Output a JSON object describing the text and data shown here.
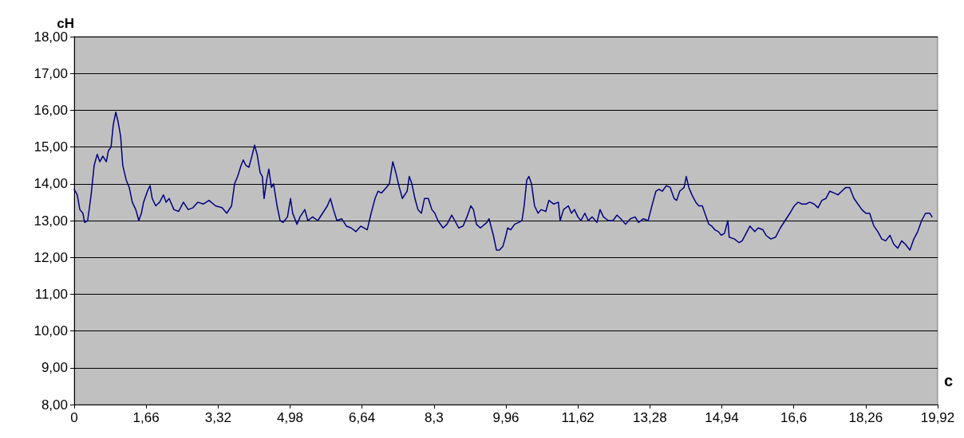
{
  "chart_data": {
    "type": "line",
    "xlabel": "с",
    "ylabel": "сН",
    "marker": "none",
    "line_style": "solid",
    "grid": "y",
    "xlim": [
      0,
      19.92
    ],
    "xticks": [
      0,
      {
        "value": 1.66,
        "label": "1,66"
      },
      {
        "value": 3.32,
        "label": "3,32"
      },
      {
        "value": 4.98,
        "label": "4,98"
      },
      {
        "value": 6.64,
        "label": "6,64"
      },
      {
        "value": 8.3,
        "label": "8,3"
      },
      {
        "value": 9.96,
        "label": "9,96"
      },
      {
        "value": 11.62,
        "label": "11,62"
      },
      {
        "value": 13.28,
        "label": "13,28"
      },
      {
        "value": 14.94,
        "label": "14,94"
      },
      {
        "value": 16.6,
        "label": "16,6"
      },
      {
        "value": 18.26,
        "label": "18,26"
      },
      {
        "value": 19.92,
        "label": "19,92"
      }
    ],
    "ylim": [
      8,
      18
    ],
    "yticks": [
      {
        "value": 8,
        "label": "8,00"
      },
      {
        "value": 9,
        "label": "9,00"
      },
      {
        "value": 10,
        "label": "10,00"
      },
      {
        "value": 11,
        "label": "11,00"
      },
      {
        "value": 12,
        "label": "12,00"
      },
      {
        "value": 13,
        "label": "13,00"
      },
      {
        "value": 14,
        "label": "14,00"
      },
      {
        "value": 15,
        "label": "15,00"
      },
      {
        "value": 16,
        "label": "16,00"
      },
      {
        "value": 17,
        "label": "17,00"
      },
      {
        "value": 18,
        "label": "18,00"
      }
    ],
    "series": [
      {
        "color": "#000080",
        "x": [
          0,
          0.07,
          0.13,
          0.2,
          0.24,
          0.31,
          0.39,
          0.46,
          0.53,
          0.59,
          0.66,
          0.74,
          0.79,
          0.85,
          0.9,
          0.96,
          1.01,
          1.07,
          1.12,
          1.2,
          1.27,
          1.34,
          1.42,
          1.49,
          1.55,
          1.6,
          1.69,
          1.75,
          1.8,
          1.88,
          1.97,
          2.06,
          2.12,
          2.19,
          2.3,
          2.41,
          2.52,
          2.63,
          2.74,
          2.85,
          2.98,
          3.11,
          3.26,
          3.41,
          3.52,
          3.63,
          3.7,
          3.77,
          3.85,
          3.9,
          3.96,
          4.03,
          4.11,
          4.16,
          4.22,
          4.29,
          4.34,
          4.38,
          4.44,
          4.49,
          4.55,
          4.6,
          4.68,
          4.75,
          4.82,
          4.92,
          4.99,
          5.04,
          5.14,
          5.21,
          5.32,
          5.39,
          5.5,
          5.62,
          5.73,
          5.84,
          5.91,
          5.98,
          6.06,
          6.17,
          6.28,
          6.39,
          6.5,
          6.61,
          6.76,
          6.85,
          6.94,
          7.01,
          7.09,
          7.2,
          7.27,
          7.35,
          7.42,
          7.49,
          7.57,
          7.68,
          7.73,
          7.79,
          7.86,
          7.93,
          8.01,
          8.08,
          8.17,
          8.25,
          8.32,
          8.39,
          8.51,
          8.6,
          8.71,
          8.78,
          8.87,
          8.97,
          9.06,
          9.15,
          9.21,
          9.28,
          9.37,
          9.52,
          9.57,
          9.67,
          9.74,
          9.81,
          9.89,
          9.96,
          10.0,
          10.07,
          10.16,
          10.25,
          10.33,
          10.38,
          10.44,
          10.49,
          10.55,
          10.62,
          10.7,
          10.77,
          10.88,
          10.95,
          11.06,
          11.17,
          11.21,
          11.29,
          11.4,
          11.47,
          11.54,
          11.62,
          11.69,
          11.78,
          11.86,
          11.95,
          12.06,
          12.13,
          12.21,
          12.32,
          12.43,
          12.52,
          12.61,
          12.72,
          12.83,
          12.94,
          13.02,
          13.13,
          13.24,
          13.35,
          13.42,
          13.49,
          13.57,
          13.66,
          13.75,
          13.84,
          13.9,
          13.97,
          14.07,
          14.12,
          14.18,
          14.25,
          14.34,
          14.41,
          14.49,
          14.58,
          14.64,
          14.71,
          14.78,
          14.86,
          14.93,
          15.0,
          15.08,
          15.11,
          15.23,
          15.34,
          15.41,
          15.5,
          15.59,
          15.7,
          15.78,
          15.89,
          15.96,
          16.07,
          16.18,
          16.29,
          16.4,
          16.51,
          16.61,
          16.7,
          16.79,
          16.88,
          16.97,
          17.07,
          17.16,
          17.25,
          17.34,
          17.43,
          17.53,
          17.62,
          17.71,
          17.8,
          17.89,
          17.99,
          18.08,
          18.17,
          18.26,
          18.35,
          18.45,
          18.54,
          18.63,
          18.72,
          18.82,
          18.91,
          19.0,
          19.09,
          19.18,
          19.28,
          19.37,
          19.46,
          19.55,
          19.64,
          19.74,
          19.79
        ],
        "values": [
          13.85,
          13.7,
          13.3,
          13.2,
          12.95,
          13.0,
          13.7,
          14.5,
          14.8,
          14.6,
          14.75,
          14.6,
          14.9,
          15.0,
          15.6,
          15.95,
          15.7,
          15.3,
          14.5,
          14.1,
          13.9,
          13.5,
          13.3,
          13.0,
          13.2,
          13.5,
          13.8,
          13.95,
          13.6,
          13.4,
          13.5,
          13.7,
          13.5,
          13.6,
          13.3,
          13.25,
          13.5,
          13.3,
          13.35,
          13.5,
          13.45,
          13.55,
          13.4,
          13.35,
          13.2,
          13.4,
          14.0,
          14.2,
          14.5,
          14.65,
          14.5,
          14.45,
          14.8,
          15.05,
          14.8,
          14.3,
          14.2,
          13.6,
          14.1,
          14.4,
          13.9,
          14.0,
          13.4,
          13.0,
          12.95,
          13.1,
          13.6,
          13.2,
          12.9,
          13.1,
          13.3,
          13.0,
          13.1,
          13.0,
          13.2,
          13.4,
          13.6,
          13.3,
          13.0,
          13.05,
          12.85,
          12.8,
          12.7,
          12.85,
          12.75,
          13.2,
          13.6,
          13.8,
          13.75,
          13.9,
          14.0,
          14.6,
          14.3,
          13.95,
          13.6,
          13.8,
          14.2,
          14.0,
          13.6,
          13.3,
          13.2,
          13.6,
          13.6,
          13.3,
          13.2,
          13.0,
          12.8,
          12.9,
          13.15,
          13.0,
          12.8,
          12.85,
          13.1,
          13.4,
          13.3,
          12.9,
          12.8,
          12.95,
          13.05,
          12.6,
          12.2,
          12.2,
          12.3,
          12.6,
          12.8,
          12.75,
          12.9,
          12.95,
          13.0,
          13.4,
          14.1,
          14.2,
          14.0,
          13.4,
          13.2,
          13.3,
          13.25,
          13.55,
          13.45,
          13.5,
          13.0,
          13.3,
          13.4,
          13.2,
          13.3,
          13.1,
          13.0,
          13.2,
          13.0,
          13.1,
          12.95,
          13.3,
          13.1,
          13.0,
          13.0,
          13.15,
          13.05,
          12.9,
          13.05,
          13.1,
          12.95,
          13.05,
          13.0,
          13.5,
          13.8,
          13.85,
          13.8,
          13.95,
          13.9,
          13.6,
          13.55,
          13.8,
          13.9,
          14.2,
          13.9,
          13.7,
          13.5,
          13.4,
          13.4,
          13.1,
          12.9,
          12.85,
          12.75,
          12.7,
          12.6,
          12.65,
          13.0,
          12.55,
          12.5,
          12.4,
          12.45,
          12.65,
          12.85,
          12.7,
          12.8,
          12.75,
          12.6,
          12.5,
          12.55,
          12.8,
          13.0,
          13.2,
          13.4,
          13.5,
          13.45,
          13.45,
          13.5,
          13.45,
          13.35,
          13.55,
          13.6,
          13.8,
          13.75,
          13.7,
          13.8,
          13.9,
          13.9,
          13.6,
          13.45,
          13.3,
          13.2,
          13.2,
          12.85,
          12.7,
          12.5,
          12.45,
          12.6,
          12.35,
          12.25,
          12.45,
          12.35,
          12.2,
          12.5,
          12.7,
          13.0,
          13.2,
          13.2,
          13.1
        ]
      }
    ]
  }
}
